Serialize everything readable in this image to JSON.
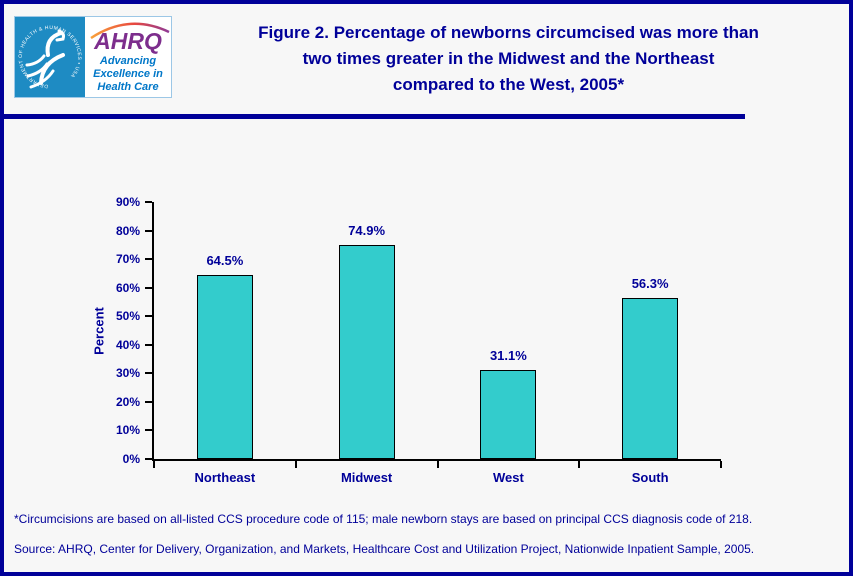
{
  "header": {
    "logo": {
      "seal_text": "DEPARTMENT OF HEALTH & HUMAN SERVICES • USA",
      "ahrq_text": "AHRQ",
      "tagline_line1": "Advancing",
      "tagline_line2": "Excellence in",
      "tagline_line3": "Health Care"
    },
    "title_line1": "Figure 2. Percentage of newborns circumcised was more than",
    "title_line2": "two times greater in the Midwest and the Northeast",
    "title_line3": "compared to the West, 2005*"
  },
  "chart_data": {
    "type": "bar",
    "categories": [
      "Northeast",
      "Midwest",
      "West",
      "South"
    ],
    "values": [
      64.5,
      74.9,
      31.1,
      56.3
    ],
    "value_labels": [
      "64.5%",
      "74.9%",
      "31.1%",
      "56.3%"
    ],
    "title": "",
    "xlabel": "",
    "ylabel": "Percent",
    "ylim": [
      0,
      90
    ],
    "ytick_step": 10,
    "ytick_labels": [
      "0%",
      "10%",
      "20%",
      "30%",
      "40%",
      "50%",
      "60%",
      "70%",
      "80%",
      "90%"
    ],
    "grid": false,
    "legend_position": "none",
    "bar_color": "#33cccc",
    "bar_border_color": "#000000"
  },
  "footnotes": {
    "note": "*Circumcisions are based on all-listed CCS procedure code of 115; male newborn stays are based on principal CCS diagnosis code of 218.",
    "source": "Source: AHRQ, Center for Delivery, Organization, and Markets, Healthcare Cost and Utilization Project, Nationwide Inpatient Sample, 2005."
  },
  "colors": {
    "accent_navy": "#000099",
    "bar_teal": "#33cccc",
    "logo_blue": "#1e8bc3",
    "logo_purple": "#7d2e8d",
    "logo_tagline_blue": "#0077c8",
    "axis_black": "#000000"
  }
}
